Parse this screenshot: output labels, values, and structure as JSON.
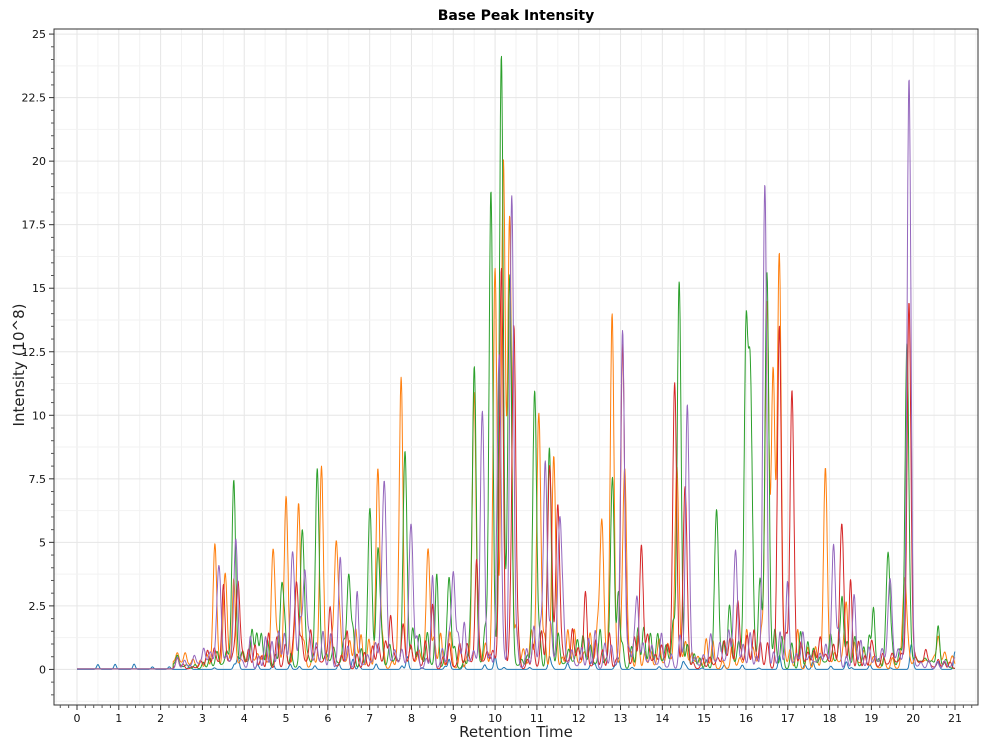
{
  "chart_data": {
    "type": "line",
    "title": "Base Peak Intensity",
    "xlabel": "Retention Time",
    "ylabel": "Intensity (10^8)",
    "xlim": [
      -0.55,
      21.55
    ],
    "ylim": [
      -1.4,
      25.2
    ],
    "xticks": [
      0,
      1,
      2,
      3,
      4,
      5,
      6,
      7,
      8,
      9,
      10,
      11,
      12,
      13,
      14,
      15,
      16,
      17,
      18,
      19,
      20,
      21
    ],
    "yticks": [
      0,
      2.5,
      5,
      7.5,
      10,
      12.5,
      15,
      17.5,
      20,
      22.5,
      25
    ],
    "ytick_labels": [
      "0",
      "2.5",
      "5",
      "7.5",
      "10",
      "12.5",
      "15",
      "17.5",
      "20",
      "22.5",
      "25"
    ],
    "grid": true,
    "legend": "none",
    "colors": [
      "#1f77b4",
      "#ff7f0e",
      "#2ca02c",
      "#d62728",
      "#9467bd"
    ],
    "series": [
      {
        "peaks": [
          [
            3.85,
            0.5
          ],
          [
            5.1,
            0.2
          ],
          [
            6.6,
            0.4
          ],
          [
            7.9,
            0.5
          ],
          [
            8.9,
            0.4
          ],
          [
            10.0,
            0.5
          ],
          [
            11.3,
            0.5
          ],
          [
            12.3,
            0.3
          ],
          [
            12.95,
            0.45
          ],
          [
            14.5,
            0.3
          ],
          [
            16.8,
            0.5
          ],
          [
            17.6,
            0.3
          ],
          [
            18.4,
            0.3
          ],
          [
            19.95,
            0.9
          ],
          [
            20.6,
            0.3
          ],
          [
            21.0,
            0.7
          ]
        ]
      },
      {
        "peaks": [
          [
            3.3,
            4.4
          ],
          [
            3.55,
            3.3
          ],
          [
            3.75,
            2.8
          ],
          [
            4.7,
            3.9
          ],
          [
            5.0,
            6.5
          ],
          [
            5.3,
            6.5
          ],
          [
            5.85,
            6.5
          ],
          [
            6.2,
            4.7
          ],
          [
            7.2,
            7.3
          ],
          [
            7.75,
            10.4
          ],
          [
            8.4,
            4.1
          ],
          [
            9.5,
            10.5
          ],
          [
            10.0,
            15.3
          ],
          [
            10.2,
            19.2
          ],
          [
            10.35,
            17.0
          ],
          [
            11.05,
            9.6
          ],
          [
            11.4,
            7.9
          ],
          [
            12.55,
            5.5
          ],
          [
            12.8,
            13.0
          ],
          [
            13.1,
            7.8
          ],
          [
            14.35,
            7.2
          ],
          [
            16.5,
            13.2
          ],
          [
            16.65,
            11.5
          ],
          [
            16.8,
            15.5
          ],
          [
            17.9,
            7.2
          ],
          [
            18.4,
            2.2
          ],
          [
            19.8,
            3.4
          ],
          [
            20.6,
            1.0
          ]
        ]
      },
      {
        "peaks": [
          [
            3.75,
            6.5
          ],
          [
            4.3,
            1.2
          ],
          [
            4.9,
            3.3
          ],
          [
            5.4,
            4.5
          ],
          [
            5.75,
            6.2
          ],
          [
            6.5,
            3.6
          ],
          [
            7.0,
            5.9
          ],
          [
            7.2,
            4.7
          ],
          [
            7.85,
            7.4
          ],
          [
            8.6,
            2.6
          ],
          [
            8.9,
            3.6
          ],
          [
            9.5,
            11.4
          ],
          [
            9.9,
            17.5
          ],
          [
            10.15,
            23.7
          ],
          [
            10.35,
            15.0
          ],
          [
            10.95,
            10.4
          ],
          [
            11.3,
            7.4
          ],
          [
            12.8,
            6.5
          ],
          [
            12.95,
            3.0
          ],
          [
            14.4,
            14.4
          ],
          [
            15.3,
            6.0
          ],
          [
            15.6,
            2.1
          ],
          [
            16.0,
            11.3
          ],
          [
            16.1,
            10.9
          ],
          [
            16.35,
            2.3
          ],
          [
            16.5,
            15.2
          ],
          [
            18.3,
            2.5
          ],
          [
            19.05,
            2.4
          ],
          [
            19.4,
            4.5
          ],
          [
            19.85,
            12.5
          ],
          [
            20.6,
            1.2
          ]
        ]
      },
      {
        "peaks": [
          [
            3.5,
            2.7
          ],
          [
            3.85,
            3.2
          ],
          [
            5.25,
            3.2
          ],
          [
            6.05,
            2.1
          ],
          [
            7.5,
            1.8
          ],
          [
            8.5,
            2.2
          ],
          [
            9.55,
            2.9
          ],
          [
            10.15,
            14.7
          ],
          [
            10.45,
            13.4
          ],
          [
            11.3,
            7.4
          ],
          [
            11.5,
            6.2
          ],
          [
            12.15,
            1.8
          ],
          [
            13.05,
            12.7
          ],
          [
            13.5,
            3.6
          ],
          [
            14.3,
            10.1
          ],
          [
            14.55,
            6.5
          ],
          [
            15.8,
            2.2
          ],
          [
            16.8,
            13.4
          ],
          [
            17.1,
            10.8
          ],
          [
            18.3,
            4.9
          ],
          [
            18.5,
            2.0
          ],
          [
            19.0,
            1.0
          ],
          [
            19.9,
            13.5
          ],
          [
            20.3,
            0.6
          ]
        ]
      },
      {
        "peaks": [
          [
            3.4,
            3.6
          ],
          [
            3.8,
            4.9
          ],
          [
            5.15,
            4.0
          ],
          [
            5.45,
            3.6
          ],
          [
            6.3,
            3.5
          ],
          [
            6.7,
            2.7
          ],
          [
            7.35,
            6.9
          ],
          [
            8.0,
            5.0
          ],
          [
            8.5,
            2.3
          ],
          [
            9.0,
            3.6
          ],
          [
            9.7,
            9.3
          ],
          [
            10.1,
            12.0
          ],
          [
            10.4,
            18.2
          ],
          [
            11.2,
            7.9
          ],
          [
            11.55,
            5.5
          ],
          [
            13.05,
            12.8
          ],
          [
            13.4,
            2.3
          ],
          [
            14.6,
            9.2
          ],
          [
            15.75,
            4.2
          ],
          [
            16.45,
            18.3
          ],
          [
            17.0,
            2.7
          ],
          [
            18.1,
            4.0
          ],
          [
            18.6,
            1.9
          ],
          [
            19.45,
            3.1
          ],
          [
            19.9,
            22.9
          ]
        ]
      }
    ]
  }
}
